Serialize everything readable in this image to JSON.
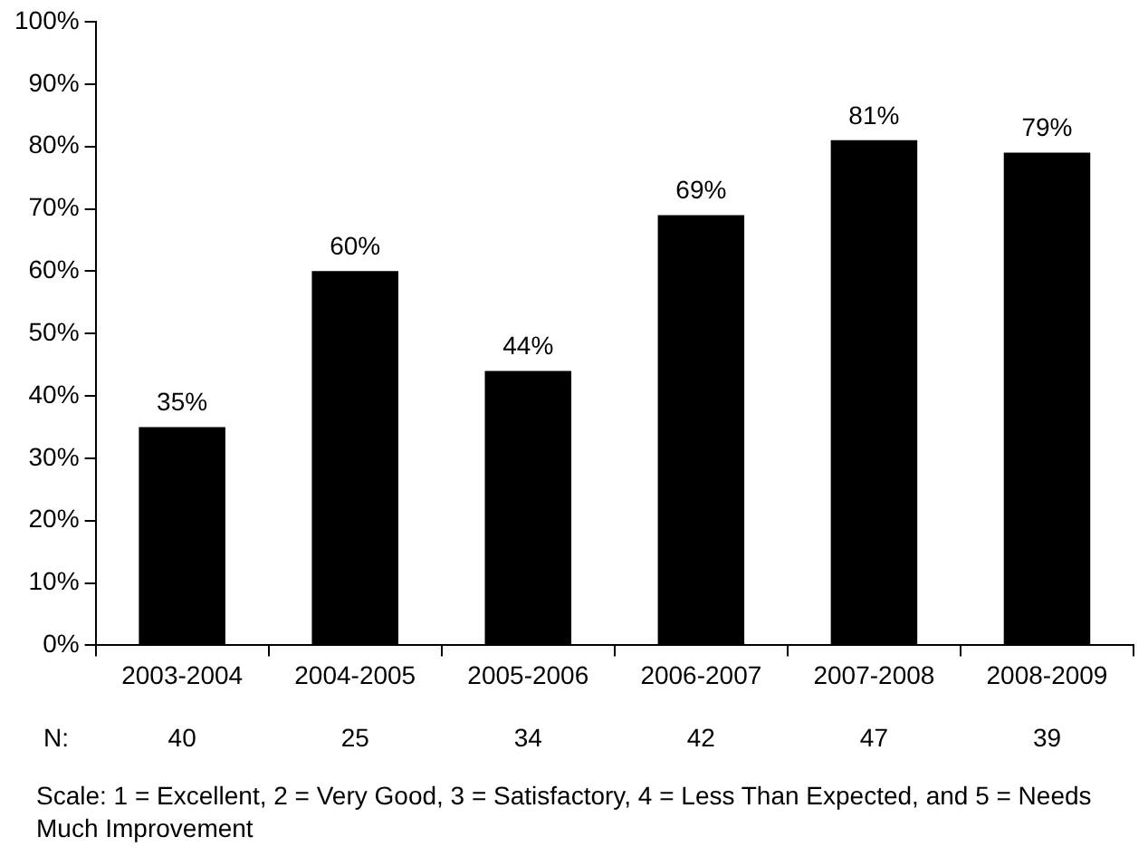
{
  "chart_data": {
    "type": "bar",
    "categories": [
      "2003-2004",
      "2004-2005",
      "2005-2006",
      "2006-2007",
      "2007-2008",
      "2008-2009"
    ],
    "values": [
      35,
      60,
      44,
      69,
      81,
      79
    ],
    "color": "#000000",
    "value_labels": [
      "35%",
      "60%",
      "44%",
      "69%",
      "81%",
      "79%"
    ],
    "ylim": [
      0,
      100
    ],
    "yticks": [
      {
        "value": 0,
        "label": "0%"
      },
      {
        "value": 10,
        "label": "10%"
      },
      {
        "value": 20,
        "label": "20%"
      },
      {
        "value": 30,
        "label": "30%"
      },
      {
        "value": 40,
        "label": "40%"
      },
      {
        "value": 50,
        "label": "50%"
      },
      {
        "value": 60,
        "label": "60%"
      },
      {
        "value": 70,
        "label": "70%"
      },
      {
        "value": 80,
        "label": "80%"
      },
      {
        "value": 90,
        "label": "90%"
      },
      {
        "value": 100,
        "label": "100%"
      }
    ],
    "grid": false,
    "legend": false,
    "annotations": [
      "N:",
      "40",
      "25",
      "34",
      "42",
      "47",
      "39",
      "Scale: 1 = Excellent, 2 = Very Good, 3 = Satisfactory, 4 = Less Than Expected, and 5 = Needs Much Improvement"
    ]
  }
}
